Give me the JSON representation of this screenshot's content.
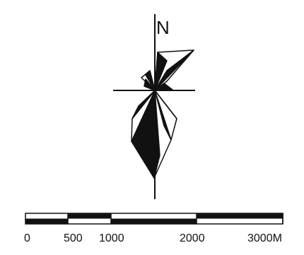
{
  "north_arrow": {
    "label": "N"
  },
  "scale_bar": {
    "ticks": [
      {
        "value": 0,
        "label": "0"
      },
      {
        "value": 500,
        "label": "500"
      },
      {
        "value": 1000,
        "label": "1000"
      },
      {
        "value": 2000,
        "label": "2000"
      },
      {
        "value": 3000,
        "label": "3000M"
      }
    ],
    "unit": "M"
  },
  "colors": {
    "ink": "#111111",
    "paper": "#ffffff"
  }
}
